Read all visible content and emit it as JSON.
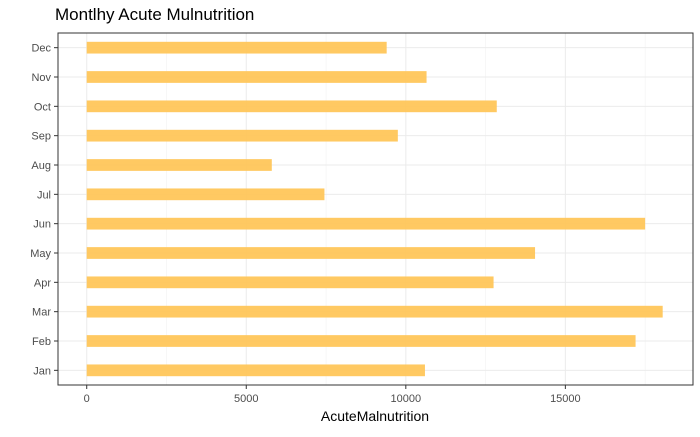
{
  "chart_data": {
    "type": "bar",
    "orientation": "horizontal",
    "title": "Montlhy Acute Mulnutrition",
    "xlabel": "AcuteMalnutrition",
    "ylabel": "",
    "categories": [
      "Jan",
      "Feb",
      "Mar",
      "Apr",
      "May",
      "Jun",
      "Jul",
      "Aug",
      "Sep",
      "Oct",
      "Nov",
      "Dec"
    ],
    "values": [
      10600,
      17200,
      18050,
      12750,
      14050,
      17500,
      7450,
      5800,
      9750,
      12850,
      10650,
      9400
    ],
    "xlim": [
      -900,
      19000
    ],
    "xticks": [
      0,
      5000,
      10000,
      15000
    ],
    "grid": true,
    "legend": "none",
    "bar_color": "#FFC65A",
    "bar_edge_color": "#F5B64A"
  }
}
